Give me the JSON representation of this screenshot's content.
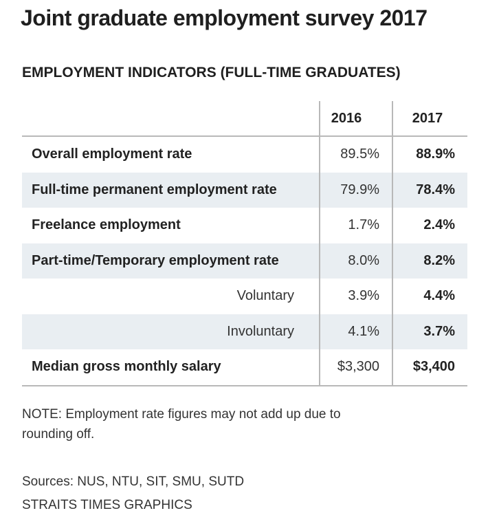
{
  "title": "Joint graduate employment survey 2017",
  "subtitle": "EMPLOYMENT INDICATORS (FULL-TIME GRADUATES)",
  "chart_data": {
    "type": "table",
    "columns": [
      "2016",
      "2017"
    ],
    "rows": [
      {
        "label": "Overall employment rate",
        "v2016": "89.5%",
        "v2017": "88.9%",
        "indent": false,
        "shaded": false
      },
      {
        "label": "Full-time permanent employment rate",
        "v2016": "79.9%",
        "v2017": "78.4%",
        "indent": false,
        "shaded": true
      },
      {
        "label": "Freelance employment",
        "v2016": "1.7%",
        "v2017": "2.4%",
        "indent": false,
        "shaded": false
      },
      {
        "label": "Part-time/Temporary employment rate",
        "v2016": "8.0%",
        "v2017": "8.2%",
        "indent": false,
        "shaded": true
      },
      {
        "label": "Voluntary",
        "v2016": "3.9%",
        "v2017": "4.4%",
        "indent": true,
        "shaded": false
      },
      {
        "label": "Involuntary",
        "v2016": "4.1%",
        "v2017": "3.7%",
        "indent": true,
        "shaded": true
      },
      {
        "label": "Median gross monthly salary",
        "v2016": "$3,300",
        "v2017": "$3,400",
        "indent": false,
        "shaded": false
      }
    ]
  },
  "note": "NOTE: Employment rate figures may not add up due to rounding off.",
  "sources": "Sources: NUS, NTU, SIT, SMU, SUTD",
  "credit": "STRAITS TIMES GRAPHICS",
  "colors": {
    "shade": "#e9eef2",
    "rule": "#b8b8b8",
    "text": "#222222"
  }
}
